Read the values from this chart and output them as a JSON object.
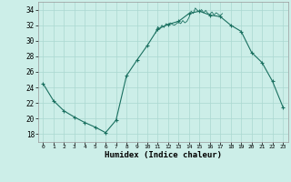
{
  "x": [
    0,
    1,
    2,
    3,
    4,
    5,
    6,
    7,
    8,
    9,
    10,
    11,
    12,
    13,
    14,
    15,
    16,
    17,
    18,
    19,
    20,
    21,
    22,
    23
  ],
  "y": [
    24.5,
    22.3,
    21.0,
    20.2,
    19.5,
    18.9,
    18.2,
    19.8,
    25.5,
    27.5,
    29.4,
    31.5,
    32.1,
    32.5,
    33.5,
    33.8,
    33.3,
    33.1,
    32.0,
    31.2,
    28.5,
    27.2,
    24.8,
    21.5
  ],
  "line_color": "#1a7060",
  "marker_color": "#1a7060",
  "bg_color": "#cceee8",
  "grid_color": "#aad8d0",
  "xlabel": "Humidex (Indice chaleur)",
  "xlim": [
    -0.5,
    23.5
  ],
  "ylim": [
    17,
    35
  ],
  "yticks": [
    18,
    20,
    22,
    24,
    26,
    28,
    30,
    32,
    34
  ],
  "xticks": [
    0,
    1,
    2,
    3,
    4,
    5,
    6,
    7,
    8,
    9,
    10,
    11,
    12,
    13,
    14,
    15,
    16,
    17,
    18,
    19,
    20,
    21,
    22,
    23
  ],
  "noise_x": [
    10.8,
    11.0,
    11.2,
    11.4,
    11.6,
    11.8,
    12.0,
    12.2,
    12.4,
    12.6,
    13.0,
    13.2,
    13.4,
    13.6,
    13.8,
    14.0,
    14.2,
    14.4,
    14.6,
    14.8,
    15.0,
    15.2,
    15.4,
    15.6,
    15.8,
    16.0,
    16.2,
    16.4,
    16.6,
    17.0,
    17.2
  ],
  "noise_y": [
    31.0,
    31.8,
    31.5,
    32.0,
    31.7,
    32.2,
    32.0,
    32.3,
    32.1,
    32.0,
    32.4,
    32.2,
    32.6,
    32.3,
    32.5,
    33.0,
    33.8,
    33.5,
    34.2,
    33.9,
    33.7,
    34.0,
    33.6,
    33.9,
    33.5,
    33.4,
    33.7,
    33.3,
    33.6,
    33.2,
    33.5
  ]
}
